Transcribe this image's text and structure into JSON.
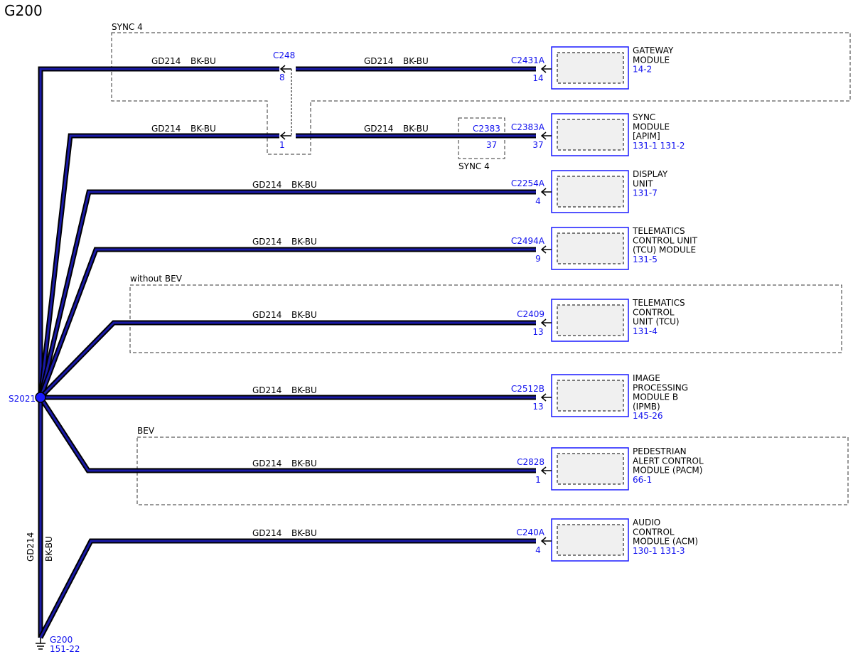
{
  "title": "G200",
  "splice": {
    "label": "S2021"
  },
  "ground": {
    "label": "G200",
    "ref": "151-22",
    "wire": "GD214",
    "color": "BK-BU"
  },
  "groups": {
    "sync4_top": "SYNC 4",
    "sync4_small": "SYNC 4",
    "without_bev": "without BEV",
    "bev": "BEV"
  },
  "inline": {
    "c248": {
      "label": "C248",
      "pin_top": "8",
      "pin_bottom": "1"
    },
    "c2383": {
      "label": "C2383",
      "pin": "37"
    }
  },
  "branches": [
    {
      "id": "gateway",
      "wire_left": "GD214",
      "color_left": "BK-BU",
      "wire_right": "GD214",
      "color_right": "BK-BU",
      "connector": "C2431A",
      "pin": "14",
      "module": [
        "GATEWAY",
        "MODULE"
      ],
      "ref": "14-2"
    },
    {
      "id": "sync",
      "wire_left": "GD214",
      "color_left": "BK-BU",
      "wire_right": "GD214",
      "color_right": "BK-BU",
      "connector": "C2383A",
      "pin": "37",
      "module": [
        "SYNC",
        "MODULE",
        "[APIM]"
      ],
      "ref": "131-1 131-2"
    },
    {
      "id": "display",
      "wire": "GD214",
      "color": "BK-BU",
      "connector": "C2254A",
      "pin": "4",
      "module": [
        "DISPLAY",
        "UNIT"
      ],
      "ref": "131-7"
    },
    {
      "id": "tcu-module",
      "wire": "GD214",
      "color": "BK-BU",
      "connector": "C2494A",
      "pin": "9",
      "module": [
        "TELEMATICS",
        "CONTROL UNIT",
        "(TCU) MODULE"
      ],
      "ref": "131-5"
    },
    {
      "id": "tcu",
      "wire": "GD214",
      "color": "BK-BU",
      "connector": "C2409",
      "pin": "13",
      "module": [
        "TELEMATICS",
        "CONTROL",
        "UNIT (TCU)"
      ],
      "ref": "131-4"
    },
    {
      "id": "ipmb",
      "wire": "GD214",
      "color": "BK-BU",
      "connector": "C2512B",
      "pin": "13",
      "module": [
        "IMAGE",
        "PROCESSING",
        "MODULE B",
        "(IPMB)"
      ],
      "ref": "145-26"
    },
    {
      "id": "pacm",
      "wire": "GD214",
      "color": "BK-BU",
      "connector": "C2828",
      "pin": "1",
      "module": [
        "PEDESTRIAN",
        "ALERT CONTROL",
        "MODULE (PACM)"
      ],
      "ref": "66-1"
    },
    {
      "id": "acm",
      "wire": "GD214",
      "color": "BK-BU",
      "connector": "C240A",
      "pin": "4",
      "module": [
        "AUDIO",
        "CONTROL",
        "MODULE (ACM)"
      ],
      "ref": "130-1 131-3"
    }
  ]
}
